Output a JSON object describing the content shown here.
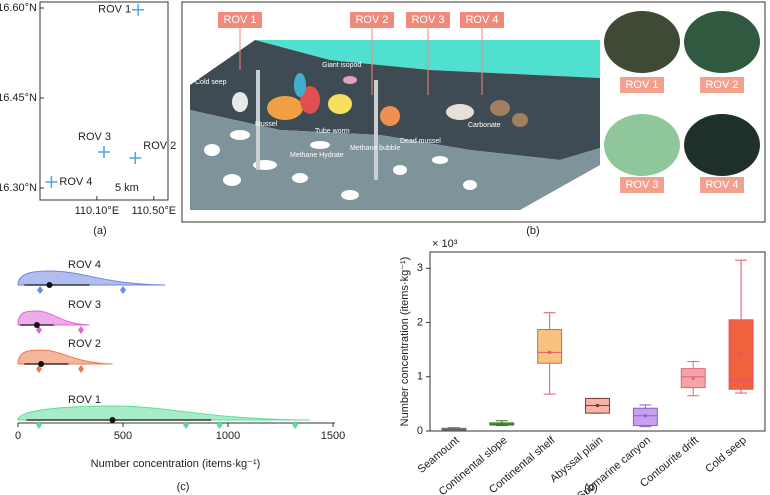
{
  "chart_data": [
    {
      "type": "scatter",
      "x": [
        110.39,
        110.37,
        110.15,
        109.78
      ],
      "y": [
        16.597,
        16.35,
        16.36,
        16.31
      ],
      "labels": [
        "ROV 1",
        "ROV 2",
        "ROV 3",
        "ROV 4"
      ],
      "color": "#4aa8e0",
      "xlim": [
        109.7,
        110.6
      ],
      "ylim": [
        16.28,
        16.61
      ],
      "xticks": [
        {
          "value": 110.1,
          "label": "110.10°E"
        },
        {
          "value": 110.5,
          "label": "110.50°E"
        }
      ],
      "yticks": [
        {
          "value": 16.3,
          "label": "16.30°N"
        },
        {
          "value": 16.45,
          "label": "16.45°N"
        },
        {
          "value": 16.6,
          "label": "16.60°N"
        }
      ],
      "annotation": "5 km",
      "caption": "(a)"
    },
    {
      "type": "violin",
      "xlabel": "Number concentration (items·kg⁻¹)",
      "xlim": [
        0,
        1500
      ],
      "xticks": [
        0,
        500,
        1000,
        1500
      ],
      "series": [
        {
          "name": "ROV 4",
          "color": "#6f86e0",
          "max": 700,
          "mean": 150,
          "ci": [
            30,
            340
          ],
          "points": [
            105,
            500
          ]
        },
        {
          "name": "ROV 3",
          "color": "#e466d8",
          "max": 340,
          "mean": 90,
          "ci": [
            10,
            170
          ],
          "points": [
            100,
            300
          ]
        },
        {
          "name": "ROV 2",
          "color": "#ee7a4f",
          "max": 450,
          "mean": 110,
          "ci": [
            30,
            240
          ],
          "points": [
            100,
            300
          ]
        },
        {
          "name": "ROV 1",
          "color": "#5fdc9a",
          "max": 1390,
          "mean": 450,
          "ci": [
            40,
            920
          ],
          "points": [
            100,
            800,
            960,
            1320
          ]
        }
      ],
      "caption": "(c)"
    },
    {
      "type": "box",
      "ylabel": "Number concentration (items·kg⁻¹)",
      "annotation": "× 10³",
      "categories": [
        "Seamount",
        "Continental slope",
        "Continental shelf",
        "Abyssal plain",
        "Submarine canyon",
        "Contourite drift",
        "Cold seep"
      ],
      "min": [
        0.01,
        0.1,
        0.68,
        0.33,
        0.08,
        0.65,
        0.7
      ],
      "q1": [
        0.02,
        0.11,
        1.25,
        0.33,
        0.1,
        0.8,
        0.77
      ],
      "median": [
        0.03,
        0.13,
        1.45,
        0.47,
        0.28,
        1.0,
        0.93
      ],
      "q3": [
        0.05,
        0.15,
        1.87,
        0.6,
        0.42,
        1.15,
        2.05
      ],
      "max": [
        0.06,
        0.19,
        2.18,
        0.6,
        0.48,
        1.28,
        3.15
      ],
      "mean": [
        0.03,
        0.13,
        1.45,
        0.47,
        0.28,
        0.97,
        1.42
      ],
      "colors": [
        "#c4c4c4",
        "#b6e39a",
        "#f7c37f",
        "#f5b5a8",
        "#c9a0f0",
        "#f5a3a8",
        "#f0623e"
      ],
      "edge_colors": [
        "#666666",
        "#3c7a2e",
        "#e05a6a",
        "#7a3b30",
        "#8a5cc9",
        "#e06670",
        "#e3506a"
      ],
      "ylim": [
        0,
        3.3
      ],
      "yticks": [
        0,
        1,
        2,
        3
      ],
      "caption": "(d)"
    }
  ],
  "diagram": {
    "rov_tags": [
      "ROV 1",
      "ROV 2",
      "ROV 3",
      "ROV 4"
    ],
    "labels": [
      "Cold seep",
      "Giant isopod",
      "Mussel",
      "Tube worm",
      "Methane Hydrate",
      "Methane bubble",
      "Dead mussel",
      "Carbonate"
    ],
    "photo_labels": [
      "ROV 1",
      "ROV 2",
      "ROV 3",
      "ROV 4"
    ],
    "caption": "(b)"
  }
}
